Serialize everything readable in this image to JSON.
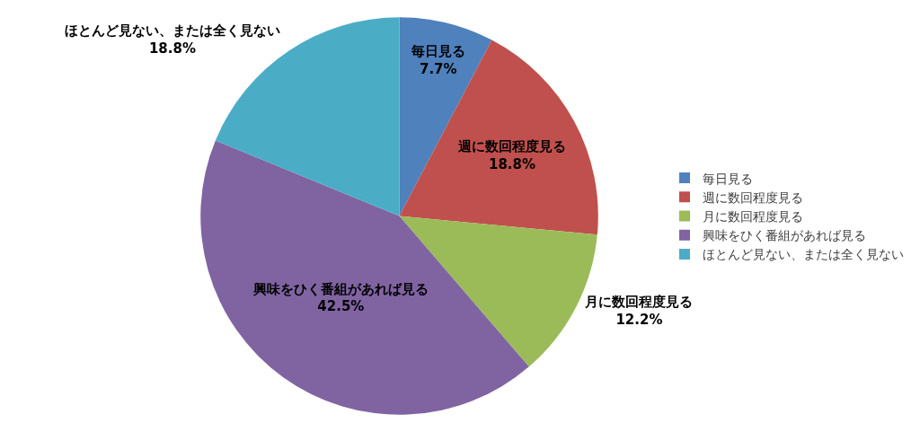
{
  "chart_data": {
    "type": "pie",
    "categories": [
      "毎日見る",
      "週に数回程度見る",
      "月に数回程度見る",
      "興味をひく番組があれば見る",
      "ほとんど見ない、または全く見ない"
    ],
    "values": [
      7.7,
      18.8,
      12.2,
      42.5,
      18.8
    ],
    "value_labels": [
      "7.7%",
      "18.8%",
      "12.2%",
      "42.5%",
      "18.8%"
    ],
    "colors": [
      "#4f81bd",
      "#c0504d",
      "#9bbb59",
      "#8064a2",
      "#4bacc6"
    ],
    "legend": "right"
  }
}
